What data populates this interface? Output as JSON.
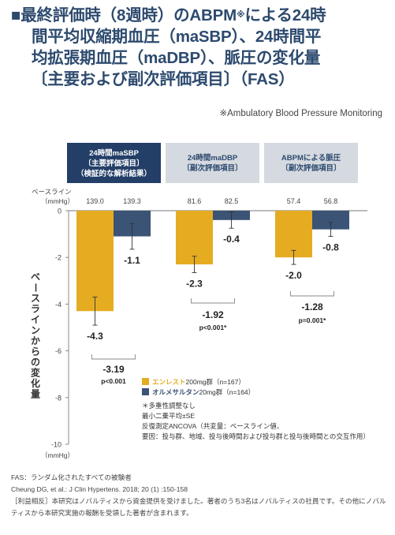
{
  "title": {
    "marker": "■",
    "lines": [
      "最終評価時（8週時）のABPM",
      "による24時",
      "間平均収縮期血圧（maSBP）、24時間平",
      "均拡張期血圧（maDBP）、脈圧の変化量",
      "〔主要および副次評価項目〕（FAS）"
    ],
    "footnote_mark": "※"
  },
  "abpm_note": "※Ambulatory Blood Pressure Monitoring",
  "colors": {
    "entresto": "#e5ac22",
    "olmesartan": "#3b5375",
    "header_primary": "#233f68",
    "header_secondary": "#d5d9e0",
    "bracket": "#888888"
  },
  "chart_data": {
    "type": "bar",
    "panels": [
      {
        "header": [
          "24時間maSBP",
          "〔主要評価項目〕",
          "（検証的な解析結果）"
        ],
        "primary": true,
        "baseline": [
          139.0,
          139.3
        ],
        "values": [
          -4.3,
          -1.1
        ],
        "errors": [
          0.6,
          0.55
        ],
        "value_labels": [
          "-4.3",
          "-1.1"
        ],
        "diff": "-3.19",
        "p": "p<0.001"
      },
      {
        "header": [
          "24時間maDBP",
          "〔副次評価項目〕"
        ],
        "primary": false,
        "baseline": [
          81.6,
          82.5
        ],
        "values": [
          -2.3,
          -0.4
        ],
        "errors": [
          0.35,
          0.35
        ],
        "value_labels": [
          "-2.3",
          "-0.4"
        ],
        "diff": "-1.92",
        "p": "p<0.001*"
      },
      {
        "header": [
          "ABPMによる脈圧",
          "〔副次評価項目〕"
        ],
        "primary": false,
        "baseline": [
          57.4,
          56.8
        ],
        "values": [
          -2.0,
          -0.8
        ],
        "errors": [
          0.3,
          0.3
        ],
        "value_labels": [
          "-2.0",
          "-0.8"
        ],
        "diff": "-1.28",
        "p": "p=0.001*"
      }
    ],
    "ylim": [
      -10,
      0
    ],
    "yticks": [
      0,
      -2,
      -4,
      -6,
      -8,
      -10
    ],
    "baseline_label": [
      "ベースライン",
      "（mmHg）"
    ],
    "ylabel": "ベースラインからの変化量",
    "yunit": "（mmHg）",
    "series": [
      {
        "name": "エンレスト",
        "dose": "200mg群（n=167）"
      },
      {
        "name": "オルメサルタン",
        "dose": "20mg群（n=164）"
      }
    ],
    "notes": [
      "＊多重性調整なし",
      "最小二乗平均±SE",
      "反復測定ANCOVA（共変量：ベースライン値、",
      "要因：投与群、地域、投与後時間および投与群と投与後時間との交互作用）"
    ]
  },
  "footer": [
    "FAS：ランダム化されたすべての被験者",
    "Cheung DG, et al.: J Clin Hypertens. 2018; 20 (1) :150-158",
    "［利益相反］本研究はノバルティスから資金提供を受けました。著者のうち3名はノバルティスの社員です。その他にノバルティスから本研究実施の報酬を受領した著者が含まれます。"
  ]
}
